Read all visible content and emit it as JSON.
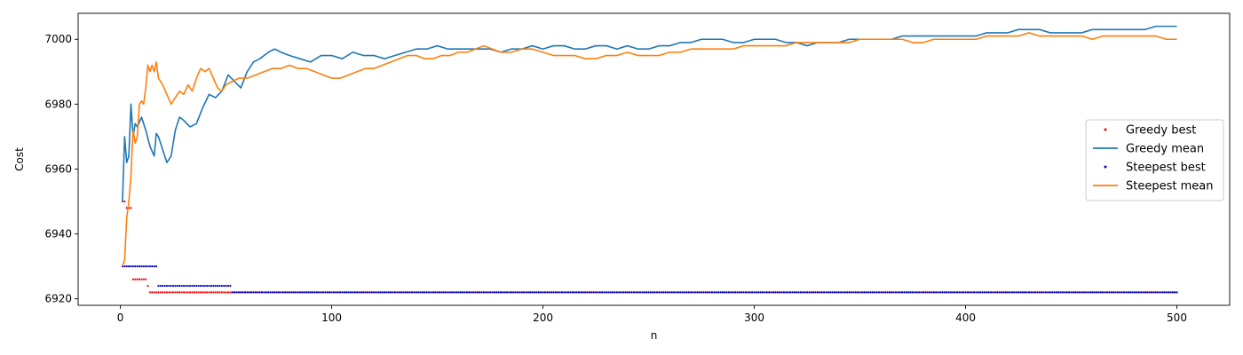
{
  "chart_data": {
    "type": "line",
    "xlabel": "n",
    "ylabel": "Cost",
    "xlim": [
      -20,
      525
    ],
    "ylim": [
      6918,
      7008
    ],
    "xticks": [
      0,
      100,
      200,
      300,
      400,
      500
    ],
    "yticks": [
      6920,
      6940,
      6960,
      6980,
      7000
    ],
    "grid": false,
    "legend_position": "center-right",
    "series": [
      {
        "name": "Greedy best",
        "style": "points",
        "color": "#ff0000",
        "steps": [
          [
            1,
            6950
          ],
          [
            3,
            6948
          ],
          [
            6,
            6926
          ],
          [
            13,
            6924
          ],
          [
            14,
            6922
          ],
          [
            500,
            6922
          ]
        ]
      },
      {
        "name": "Greedy mean",
        "style": "line",
        "color": "#1f77b4",
        "points": [
          [
            1,
            6950
          ],
          [
            2,
            6970
          ],
          [
            3,
            6962
          ],
          [
            4,
            6964
          ],
          [
            5,
            6980
          ],
          [
            6,
            6970
          ],
          [
            7,
            6974
          ],
          [
            8,
            6973
          ],
          [
            10,
            6976
          ],
          [
            12,
            6972
          ],
          [
            14,
            6967
          ],
          [
            16,
            6964
          ],
          [
            17,
            6971
          ],
          [
            18,
            6970
          ],
          [
            20,
            6966
          ],
          [
            22,
            6962
          ],
          [
            24,
            6964
          ],
          [
            26,
            6972
          ],
          [
            28,
            6976
          ],
          [
            30,
            6975
          ],
          [
            33,
            6973
          ],
          [
            36,
            6974
          ],
          [
            39,
            6979
          ],
          [
            42,
            6983
          ],
          [
            45,
            6982
          ],
          [
            48,
            6984
          ],
          [
            51,
            6989
          ],
          [
            54,
            6987
          ],
          [
            57,
            6985
          ],
          [
            60,
            6990
          ],
          [
            63,
            6993
          ],
          [
            66,
            6994
          ],
          [
            70,
            6996
          ],
          [
            73,
            6997
          ],
          [
            76,
            6996
          ],
          [
            80,
            6995
          ],
          [
            85,
            6994
          ],
          [
            90,
            6993
          ],
          [
            95,
            6995
          ],
          [
            100,
            6995
          ],
          [
            105,
            6994
          ],
          [
            110,
            6996
          ],
          [
            115,
            6995
          ],
          [
            120,
            6995
          ],
          [
            125,
            6994
          ],
          [
            130,
            6995
          ],
          [
            135,
            6996
          ],
          [
            140,
            6997
          ],
          [
            145,
            6997
          ],
          [
            150,
            6998
          ],
          [
            155,
            6997
          ],
          [
            160,
            6997
          ],
          [
            165,
            6997
          ],
          [
            170,
            6997
          ],
          [
            175,
            6997
          ],
          [
            180,
            6996
          ],
          [
            185,
            6997
          ],
          [
            190,
            6997
          ],
          [
            195,
            6998
          ],
          [
            200,
            6997
          ],
          [
            205,
            6998
          ],
          [
            210,
            6998
          ],
          [
            215,
            6997
          ],
          [
            220,
            6997
          ],
          [
            225,
            6998
          ],
          [
            230,
            6998
          ],
          [
            235,
            6997
          ],
          [
            240,
            6998
          ],
          [
            245,
            6997
          ],
          [
            250,
            6997
          ],
          [
            255,
            6998
          ],
          [
            260,
            6998
          ],
          [
            265,
            6999
          ],
          [
            270,
            6999
          ],
          [
            275,
            7000
          ],
          [
            280,
            7000
          ],
          [
            285,
            7000
          ],
          [
            290,
            6999
          ],
          [
            295,
            6999
          ],
          [
            300,
            7000
          ],
          [
            305,
            7000
          ],
          [
            310,
            7000
          ],
          [
            315,
            6999
          ],
          [
            320,
            6999
          ],
          [
            325,
            6998
          ],
          [
            330,
            6999
          ],
          [
            335,
            6999
          ],
          [
            340,
            6999
          ],
          [
            345,
            7000
          ],
          [
            350,
            7000
          ],
          [
            355,
            7000
          ],
          [
            360,
            7000
          ],
          [
            365,
            7000
          ],
          [
            370,
            7001
          ],
          [
            375,
            7001
          ],
          [
            380,
            7001
          ],
          [
            385,
            7001
          ],
          [
            390,
            7001
          ],
          [
            395,
            7001
          ],
          [
            400,
            7001
          ],
          [
            405,
            7001
          ],
          [
            410,
            7002
          ],
          [
            415,
            7002
          ],
          [
            420,
            7002
          ],
          [
            425,
            7003
          ],
          [
            430,
            7003
          ],
          [
            435,
            7003
          ],
          [
            440,
            7002
          ],
          [
            445,
            7002
          ],
          [
            450,
            7002
          ],
          [
            455,
            7002
          ],
          [
            460,
            7003
          ],
          [
            465,
            7003
          ],
          [
            470,
            7003
          ],
          [
            475,
            7003
          ],
          [
            480,
            7003
          ],
          [
            485,
            7003
          ],
          [
            490,
            7004
          ],
          [
            495,
            7004
          ],
          [
            500,
            7004
          ]
        ]
      },
      {
        "name": "Steepest best",
        "style": "points",
        "color": "#0000cc",
        "steps": [
          [
            1,
            6930
          ],
          [
            18,
            6924
          ],
          [
            53,
            6922
          ],
          [
            500,
            6922
          ]
        ]
      },
      {
        "name": "Steepest mean",
        "style": "line",
        "color": "#ff7f0e",
        "points": [
          [
            1,
            6930
          ],
          [
            2,
            6932
          ],
          [
            3,
            6945
          ],
          [
            4,
            6950
          ],
          [
            5,
            6958
          ],
          [
            6,
            6972
          ],
          [
            7,
            6968
          ],
          [
            8,
            6970
          ],
          [
            9,
            6980
          ],
          [
            10,
            6981
          ],
          [
            11,
            6980
          ],
          [
            12,
            6985
          ],
          [
            13,
            6992
          ],
          [
            14,
            6990
          ],
          [
            15,
            6992
          ],
          [
            16,
            6990
          ],
          [
            17,
            6993
          ],
          [
            18,
            6988
          ],
          [
            20,
            6986
          ],
          [
            22,
            6983
          ],
          [
            24,
            6980
          ],
          [
            26,
            6982
          ],
          [
            28,
            6984
          ],
          [
            30,
            6983
          ],
          [
            32,
            6986
          ],
          [
            34,
            6984
          ],
          [
            36,
            6988
          ],
          [
            38,
            6991
          ],
          [
            40,
            6990
          ],
          [
            42,
            6991
          ],
          [
            44,
            6988
          ],
          [
            46,
            6985
          ],
          [
            48,
            6984
          ],
          [
            50,
            6986
          ],
          [
            53,
            6987
          ],
          [
            56,
            6988
          ],
          [
            60,
            6988
          ],
          [
            64,
            6989
          ],
          [
            68,
            6990
          ],
          [
            72,
            6991
          ],
          [
            76,
            6991
          ],
          [
            80,
            6992
          ],
          [
            84,
            6991
          ],
          [
            88,
            6991
          ],
          [
            92,
            6990
          ],
          [
            96,
            6989
          ],
          [
            100,
            6988
          ],
          [
            104,
            6988
          ],
          [
            108,
            6989
          ],
          [
            112,
            6990
          ],
          [
            116,
            6991
          ],
          [
            120,
            6991
          ],
          [
            124,
            6992
          ],
          [
            128,
            6993
          ],
          [
            132,
            6994
          ],
          [
            136,
            6995
          ],
          [
            140,
            6995
          ],
          [
            144,
            6994
          ],
          [
            148,
            6994
          ],
          [
            152,
            6995
          ],
          [
            156,
            6995
          ],
          [
            160,
            6996
          ],
          [
            164,
            6996
          ],
          [
            168,
            6997
          ],
          [
            172,
            6998
          ],
          [
            176,
            6997
          ],
          [
            180,
            6996
          ],
          [
            185,
            6996
          ],
          [
            190,
            6997
          ],
          [
            195,
            6997
          ],
          [
            200,
            6996
          ],
          [
            205,
            6995
          ],
          [
            210,
            6995
          ],
          [
            215,
            6995
          ],
          [
            220,
            6994
          ],
          [
            225,
            6994
          ],
          [
            230,
            6995
          ],
          [
            235,
            6995
          ],
          [
            240,
            6996
          ],
          [
            245,
            6995
          ],
          [
            250,
            6995
          ],
          [
            255,
            6995
          ],
          [
            260,
            6996
          ],
          [
            265,
            6996
          ],
          [
            270,
            6997
          ],
          [
            275,
            6997
          ],
          [
            280,
            6997
          ],
          [
            285,
            6997
          ],
          [
            290,
            6997
          ],
          [
            295,
            6998
          ],
          [
            300,
            6998
          ],
          [
            305,
            6998
          ],
          [
            310,
            6998
          ],
          [
            315,
            6998
          ],
          [
            320,
            6999
          ],
          [
            325,
            6999
          ],
          [
            330,
            6999
          ],
          [
            335,
            6999
          ],
          [
            340,
            6999
          ],
          [
            345,
            6999
          ],
          [
            350,
            7000
          ],
          [
            355,
            7000
          ],
          [
            360,
            7000
          ],
          [
            365,
            7000
          ],
          [
            370,
            7000
          ],
          [
            375,
            6999
          ],
          [
            380,
            6999
          ],
          [
            385,
            7000
          ],
          [
            390,
            7000
          ],
          [
            395,
            7000
          ],
          [
            400,
            7000
          ],
          [
            405,
            7000
          ],
          [
            410,
            7001
          ],
          [
            415,
            7001
          ],
          [
            420,
            7001
          ],
          [
            425,
            7001
          ],
          [
            430,
            7002
          ],
          [
            435,
            7001
          ],
          [
            440,
            7001
          ],
          [
            445,
            7001
          ],
          [
            450,
            7001
          ],
          [
            455,
            7001
          ],
          [
            460,
            7000
          ],
          [
            465,
            7001
          ],
          [
            470,
            7001
          ],
          [
            475,
            7001
          ],
          [
            480,
            7001
          ],
          [
            485,
            7001
          ],
          [
            490,
            7001
          ],
          [
            495,
            7000
          ],
          [
            500,
            7000
          ]
        ]
      }
    ]
  }
}
